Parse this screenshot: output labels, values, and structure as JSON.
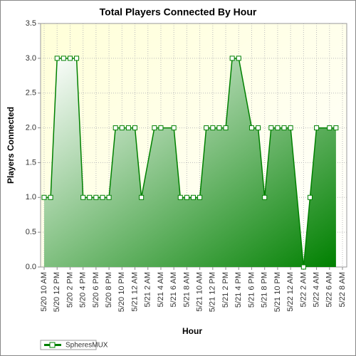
{
  "chart_data": {
    "type": "area",
    "title": "Total Players Connected By Hour",
    "x_label": "Hour",
    "y_label": "Players Connected",
    "x": [
      "5/20 10 AM",
      "5/20 11 AM",
      "5/20 12 PM",
      "5/20 1 PM",
      "5/20 2 PM",
      "5/20 3 PM",
      "5/20 4 PM",
      "5/20 5 PM",
      "5/20 6 PM",
      "5/20 7 PM",
      "5/20 8 PM",
      "5/20 9 PM",
      "5/20 10 PM",
      "5/20 11 PM",
      "5/21 12 AM",
      "5/21 1 AM",
      "5/21 3 AM",
      "5/21 4 AM",
      "5/21 6 AM",
      "5/21 7 AM",
      "5/21 8 AM",
      "5/21 9 AM",
      "5/21 10 AM",
      "5/21 11 AM",
      "5/21 12 PM",
      "5/21 1 PM",
      "5/21 2 PM",
      "5/21 3 PM",
      "5/21 4 PM",
      "5/21 6 PM",
      "5/21 7 PM",
      "5/21 8 PM",
      "5/21 9 PM",
      "5/21 10 PM",
      "5/21 11 PM",
      "5/22 12 AM",
      "5/22 2 AM",
      "5/22 3 AM",
      "5/22 4 AM",
      "5/22 6 AM",
      "5/22 7 AM"
    ],
    "series": [
      {
        "name": "SpheresMUX",
        "color": "#008000",
        "values": [
          1,
          1,
          3,
          3,
          3,
          3,
          1,
          1,
          1,
          1,
          1,
          2,
          2,
          2,
          2,
          1,
          2,
          2,
          2,
          1,
          1,
          1,
          1,
          2,
          2,
          2,
          2,
          3,
          3,
          2,
          2,
          1,
          2,
          2,
          2,
          2,
          0,
          1,
          2,
          2,
          2
        ]
      }
    ],
    "xticks": [
      "5/20 10 AM",
      "5/20 12 PM",
      "5/20 2 PM",
      "5/20 4 PM",
      "5/20 6 PM",
      "5/20 8 PM",
      "5/20 10 PM",
      "5/21 12 AM",
      "5/21 2 AM",
      "5/21 4 AM",
      "5/21 6 AM",
      "5/21 8 AM",
      "5/21 10 AM",
      "5/21 12 PM",
      "5/21 2 PM",
      "5/21 4 PM",
      "5/21 6 PM",
      "5/21 8 PM",
      "5/21 10 PM",
      "5/22 12 AM",
      "5/22 2 AM",
      "5/22 4 AM",
      "5/22 6 AM",
      "5/22 8 AM"
    ],
    "ylim": [
      0,
      3.5
    ],
    "yticks": [
      {
        "value": 0,
        "label": "0.0"
      },
      {
        "value": 0.5,
        "label": "0.5"
      },
      {
        "value": 1,
        "label": "1.0"
      },
      {
        "value": 1.5,
        "label": "1.5"
      },
      {
        "value": 2,
        "label": "2.0"
      },
      {
        "value": 2.5,
        "label": "2.5"
      },
      {
        "value": 3,
        "label": "3.0"
      },
      {
        "value": 3.5,
        "label": "3.5"
      }
    ],
    "grid": true,
    "legend": "bottom-left"
  }
}
